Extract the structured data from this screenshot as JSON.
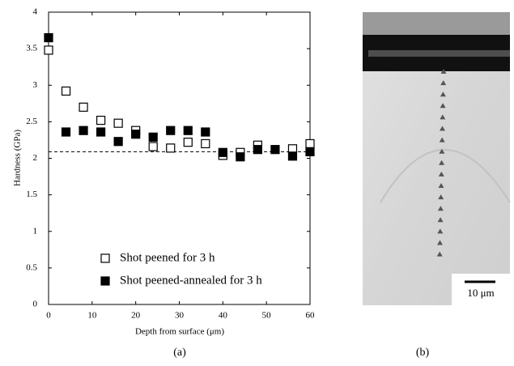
{
  "chart_data": {
    "type": "scatter",
    "x_label": "Depth from surface (μm)",
    "y_label": "Hardness (GPa)",
    "xlim": [
      0,
      60
    ],
    "xticks": [
      0,
      10,
      20,
      30,
      40,
      50,
      60
    ],
    "ylim": [
      0,
      4
    ],
    "yticks": [
      0,
      0.5,
      1,
      1.5,
      2,
      2.5,
      3,
      3.5,
      4
    ],
    "reference_line": 2.09,
    "legend": "lower left",
    "series": [
      {
        "name": "Shot peened for 3 h",
        "color": "#000000",
        "marker": "open-square",
        "x": [
          0,
          4,
          8,
          12,
          16,
          20,
          24,
          28,
          32,
          36,
          40,
          44,
          48,
          56,
          60
        ],
        "values": [
          3.48,
          2.92,
          2.7,
          2.52,
          2.48,
          2.38,
          2.16,
          2.14,
          2.22,
          2.2,
          2.04,
          2.08,
          2.18,
          2.13,
          2.2
        ]
      },
      {
        "name": "Shot peened-annealed for 3 h",
        "color": "#000000",
        "marker": "filled-square",
        "x": [
          0,
          4,
          8,
          12,
          16,
          20,
          24,
          28,
          32,
          36,
          40,
          44,
          48,
          52,
          56,
          60
        ],
        "values": [
          3.65,
          2.36,
          2.38,
          2.36,
          2.23,
          2.33,
          2.29,
          2.38,
          2.38,
          2.36,
          2.08,
          2.02,
          2.12,
          2.12,
          2.03,
          2.09
        ]
      }
    ]
  },
  "panels": {
    "a": "(a)",
    "b": "(b)"
  },
  "micrograph": {
    "scale_bar": "10 μm"
  }
}
